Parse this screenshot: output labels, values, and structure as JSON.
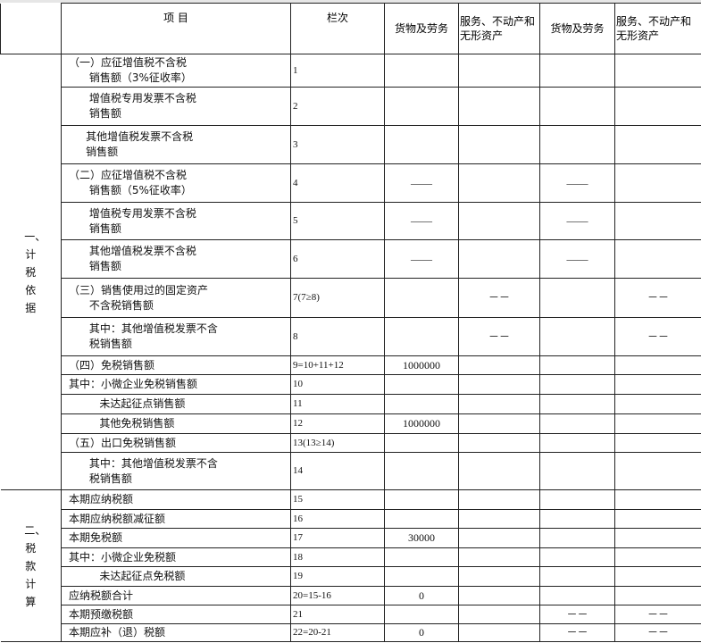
{
  "header": {
    "item": "项  目",
    "line": "栏次",
    "c1": "货物及劳务",
    "c2": "服务、不动产和无形资产",
    "c3": "货物及劳务",
    "c4": "服务、不动产和无形资产"
  },
  "sections": [
    {
      "label": "一、计税依据"
    },
    {
      "label": "二、税款计算"
    }
  ],
  "rows": [
    {
      "item": "（一）应征增值税不含税\n      销售额（3%征收率）",
      "line": "1",
      "v": [
        "",
        "",
        "",
        ""
      ]
    },
    {
      "item": "      增值税专用发票不含税\n      销售额",
      "line": "2",
      "v": [
        "",
        "",
        "",
        ""
      ]
    },
    {
      "item": "     其他增值税发票不含税\n     销售额",
      "line": "3",
      "v": [
        "",
        "",
        "",
        ""
      ]
    },
    {
      "item": "（二）应征增值税不含税\n      销售额（5%征收率）",
      "line": "4",
      "v": [
        "——",
        "",
        "——",
        ""
      ]
    },
    {
      "item": "      增值税专用发票不含税\n      销售额",
      "line": "5",
      "v": [
        "——",
        "",
        "——",
        ""
      ]
    },
    {
      "item": "      其他增值税发票不含税\n      销售额",
      "line": "6",
      "v": [
        "——",
        "",
        "——",
        ""
      ]
    },
    {
      "item": "（三）销售使用过的固定资产\n      不含税销售额",
      "line": "7(7≥8)",
      "v": [
        "",
        "－－",
        "",
        "－－"
      ]
    },
    {
      "item": "      其中：其他增值税发票不含\n      税销售额",
      "line": "8",
      "v": [
        "",
        "－－",
        "",
        "－－"
      ]
    },
    {
      "item": "（四）免税销售额",
      "line": "9=10+11+12",
      "v": [
        "1000000",
        "",
        "",
        ""
      ]
    },
    {
      "item": "其中：小微企业免税销售额",
      "line": "10",
      "v": [
        "",
        "",
        "",
        ""
      ]
    },
    {
      "item": "         未达起征点销售额",
      "line": "11",
      "v": [
        "",
        "",
        "",
        ""
      ]
    },
    {
      "item": "         其他免税销售额",
      "line": "12",
      "v": [
        "1000000",
        "",
        "",
        ""
      ]
    },
    {
      "item": "（五）出口免税销售额",
      "line": "13(13≥14)",
      "v": [
        "",
        "",
        "",
        ""
      ]
    },
    {
      "item": "      其中：其他增值税发票不含\n      税销售额",
      "line": "14",
      "v": [
        "",
        "",
        "",
        ""
      ]
    },
    {
      "item": "本期应纳税额",
      "line": "15",
      "v": [
        "",
        "",
        "",
        ""
      ]
    },
    {
      "item": "本期应纳税额减征额",
      "line": "16",
      "v": [
        "",
        "",
        "",
        ""
      ]
    },
    {
      "item": "本期免税额",
      "line": "17",
      "v": [
        "30000",
        "",
        "",
        ""
      ]
    },
    {
      "item": "其中：小微企业免税额",
      "line": "18",
      "v": [
        "",
        "",
        "",
        ""
      ]
    },
    {
      "item": "         未达起征点免税额",
      "line": "19",
      "v": [
        "",
        "",
        "",
        ""
      ]
    },
    {
      "item": "应纳税额合计",
      "line": "20=15-16",
      "v": [
        "0",
        "",
        "",
        ""
      ]
    },
    {
      "item": "本期预缴税额",
      "line": "21",
      "v": [
        "",
        "",
        "－－",
        "－－"
      ]
    },
    {
      "item": "本期应补（退）税额",
      "line": "22=20-21",
      "v": [
        "0",
        "",
        "－－",
        "－－"
      ]
    }
  ]
}
